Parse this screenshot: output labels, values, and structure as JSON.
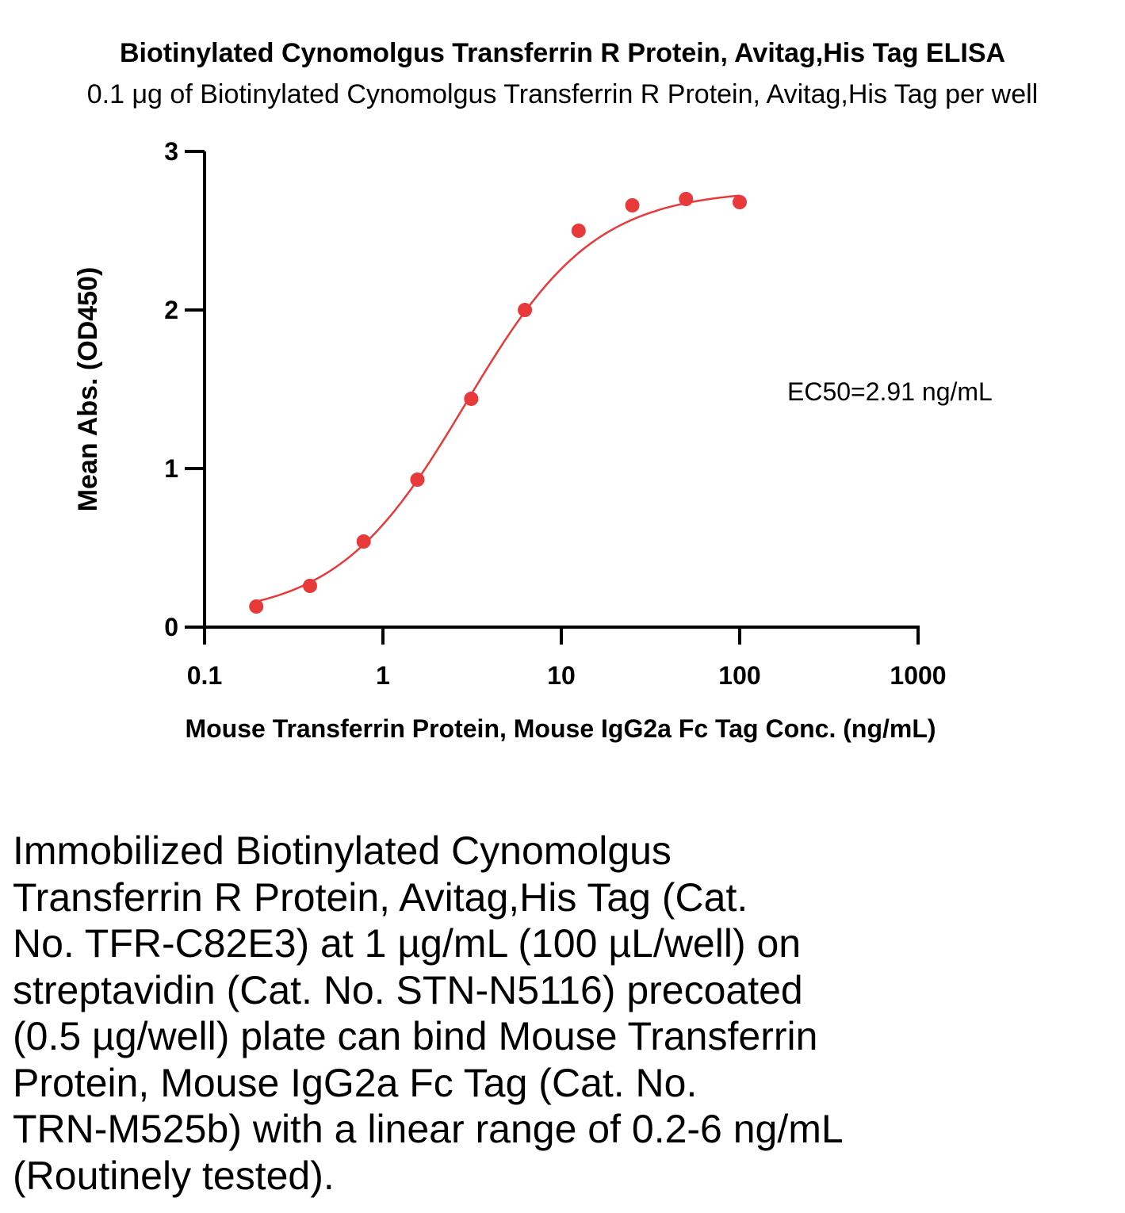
{
  "chart_data": {
    "type": "scatter",
    "title": "Biotinylated Cynomolgus Transferrin R Protein, Avitag,His Tag ELISA",
    "subtitle": "0.1 μg of Biotinylated Cynomolgus Transferrin R Protein, Avitag,His Tag per well",
    "xlabel": "Mouse Transferrin Protein, Mouse IgG2a Fc Tag Conc. (ng/mL)",
    "ylabel": "Mean Abs. (OD450)",
    "x_scale": "log",
    "xlim": [
      0.1,
      1000
    ],
    "ylim": [
      0,
      3
    ],
    "x_ticks": [
      0.1,
      1,
      10,
      100,
      1000
    ],
    "x_tick_labels": [
      "0.1",
      "1",
      "10",
      "100",
      "1000"
    ],
    "y_ticks": [
      0,
      1,
      2,
      3
    ],
    "y_tick_labels": [
      "0",
      "1",
      "2",
      "3"
    ],
    "grid": false,
    "annotation": "EC50=2.91 ng/mL",
    "color": "#e83a3a",
    "series": [
      {
        "x": [
          0.195,
          0.39,
          0.78,
          1.56,
          3.125,
          6.25,
          12.5,
          25,
          50,
          100
        ],
        "y": [
          0.13,
          0.26,
          0.54,
          0.93,
          1.44,
          2.0,
          2.5,
          2.66,
          2.7,
          2.68
        ]
      }
    ],
    "fit_curve": {
      "model": "4PL",
      "bottom": 0.06,
      "top": 2.76,
      "ec50": 2.91,
      "hill": 1.2
    }
  },
  "caption": {
    "lines": [
      "Immobilized Biotinylated Cynomolgus",
      "Transferrin R Protein, Avitag,His Tag (Cat.",
      "No. TFR-C82E3) at 1 µg/mL (100 µL/well) on",
      "streptavidin (Cat. No. STN-N5116) precoated",
      "(0.5 µg/well) plate can bind Mouse Transferrin",
      "Protein, Mouse IgG2a Fc Tag (Cat. No.",
      "TRN-M525b) with a linear range of 0.2-6 ng/mL",
      "(Routinely tested)."
    ]
  }
}
